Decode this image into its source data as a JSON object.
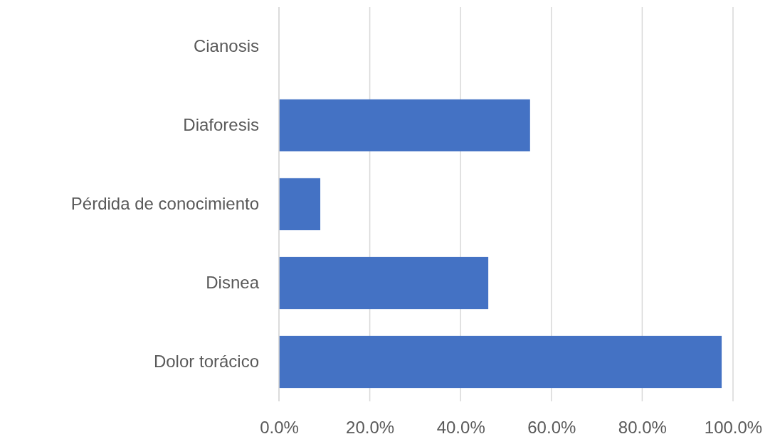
{
  "chart_data": {
    "type": "bar",
    "orientation": "horizontal",
    "categories": [
      "Cianosis",
      "Diaforesis",
      "Pérdida de conocimiento",
      "Disnea",
      "Dolor torácico"
    ],
    "values": [
      0,
      55.3,
      9.1,
      46.1,
      97.5
    ],
    "color": "#4472c4",
    "xlim": [
      0,
      100
    ],
    "xticks": [
      {
        "value": 0,
        "label": "0.0%"
      },
      {
        "value": 20,
        "label": "20.0%"
      },
      {
        "value": 40,
        "label": "40.0%"
      },
      {
        "value": 60,
        "label": "60.0%"
      },
      {
        "value": 80,
        "label": "80.0%"
      },
      {
        "value": 100,
        "label": "100.0%"
      }
    ],
    "grid": "x"
  }
}
